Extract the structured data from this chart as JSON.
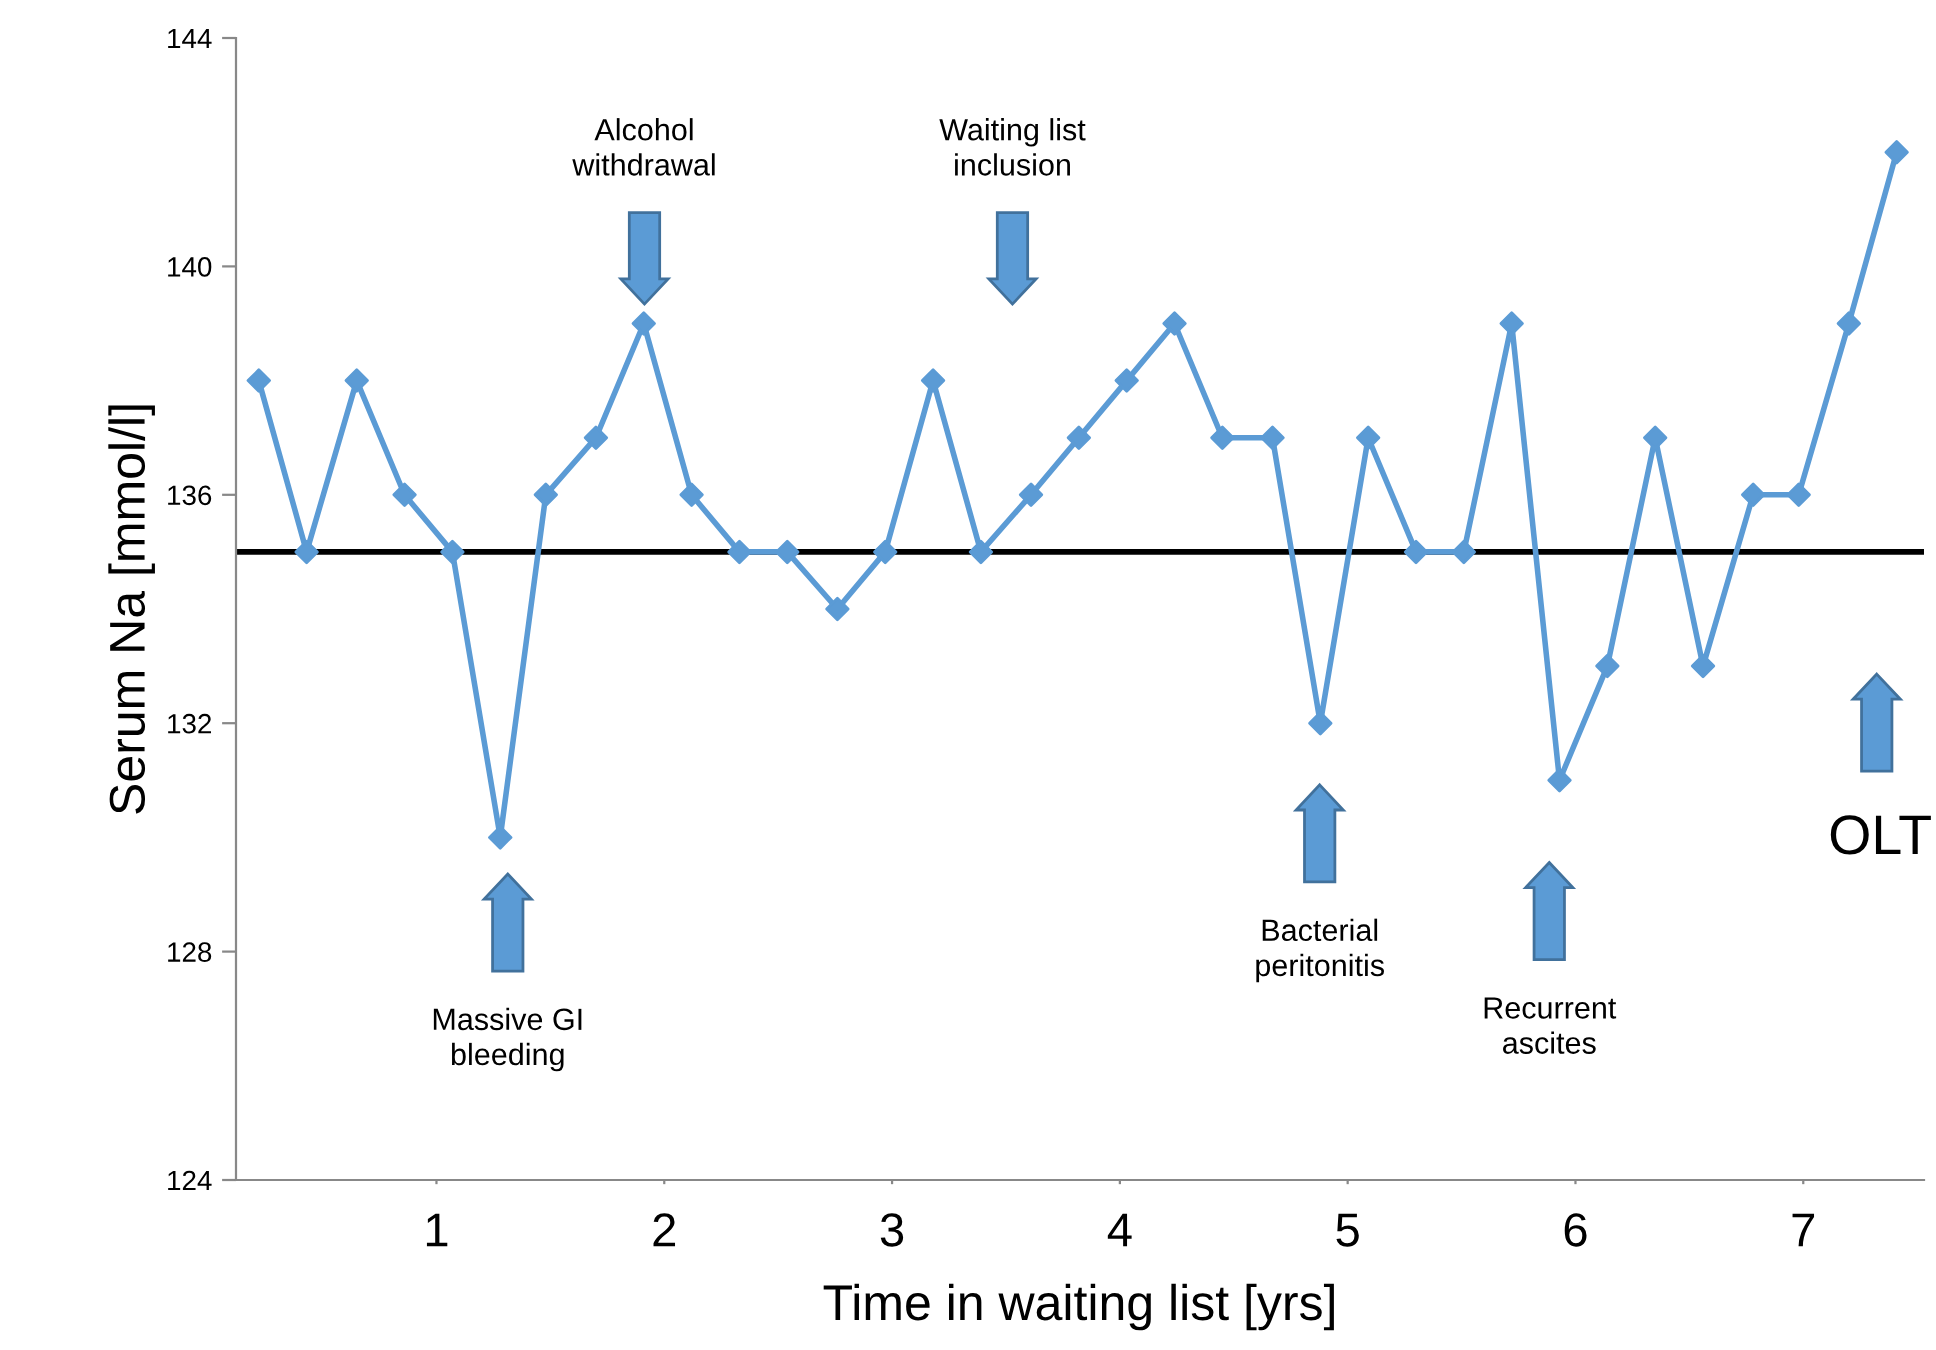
{
  "chart_data": {
    "type": "line",
    "xlabel": "Time in waiting list [yrs]",
    "ylabel": "Serum Na [mmol/l]",
    "x": [
      0.22,
      0.43,
      0.65,
      0.86,
      1.07,
      1.28,
      1.48,
      1.7,
      1.91,
      2.12,
      2.33,
      2.54,
      2.76,
      2.97,
      3.18,
      3.39,
      3.61,
      3.82,
      4.03,
      4.24,
      4.45,
      4.67,
      4.88,
      5.09,
      5.3,
      5.51,
      5.72,
      5.93,
      6.14,
      6.35,
      6.56,
      6.78,
      6.98,
      7.2,
      7.41
    ],
    "series": [
      {
        "color": "#5b9bd5",
        "values": [
          138,
          135,
          138,
          136,
          135,
          130,
          136,
          137,
          139,
          136,
          135,
          135,
          134,
          135,
          138,
          135,
          136,
          137,
          138,
          139,
          137,
          137,
          132,
          137,
          135,
          135,
          139,
          131,
          133,
          137,
          133,
          136,
          136,
          139,
          142
        ]
      }
    ],
    "xlim": [
      0.12,
      7.53
    ],
    "xticks": [
      1,
      2,
      3,
      4,
      5,
      6,
      7
    ],
    "ylim": [
      124,
      144
    ],
    "yticks": [
      124,
      128,
      132,
      136,
      140,
      144
    ],
    "ref_lines": [
      {
        "axis": "y",
        "value": 135,
        "color": "#000000"
      }
    ],
    "annotations": [
      "Alcohol\nwithdrawal",
      "Waiting list\ninclusion",
      "Massive GI\nbleeding",
      "Bacterial\nperitonitis",
      "Recurrent\nascites",
      "OLT"
    ],
    "marker": "diamond",
    "line_style": "solid",
    "grid": false,
    "legend": false
  }
}
